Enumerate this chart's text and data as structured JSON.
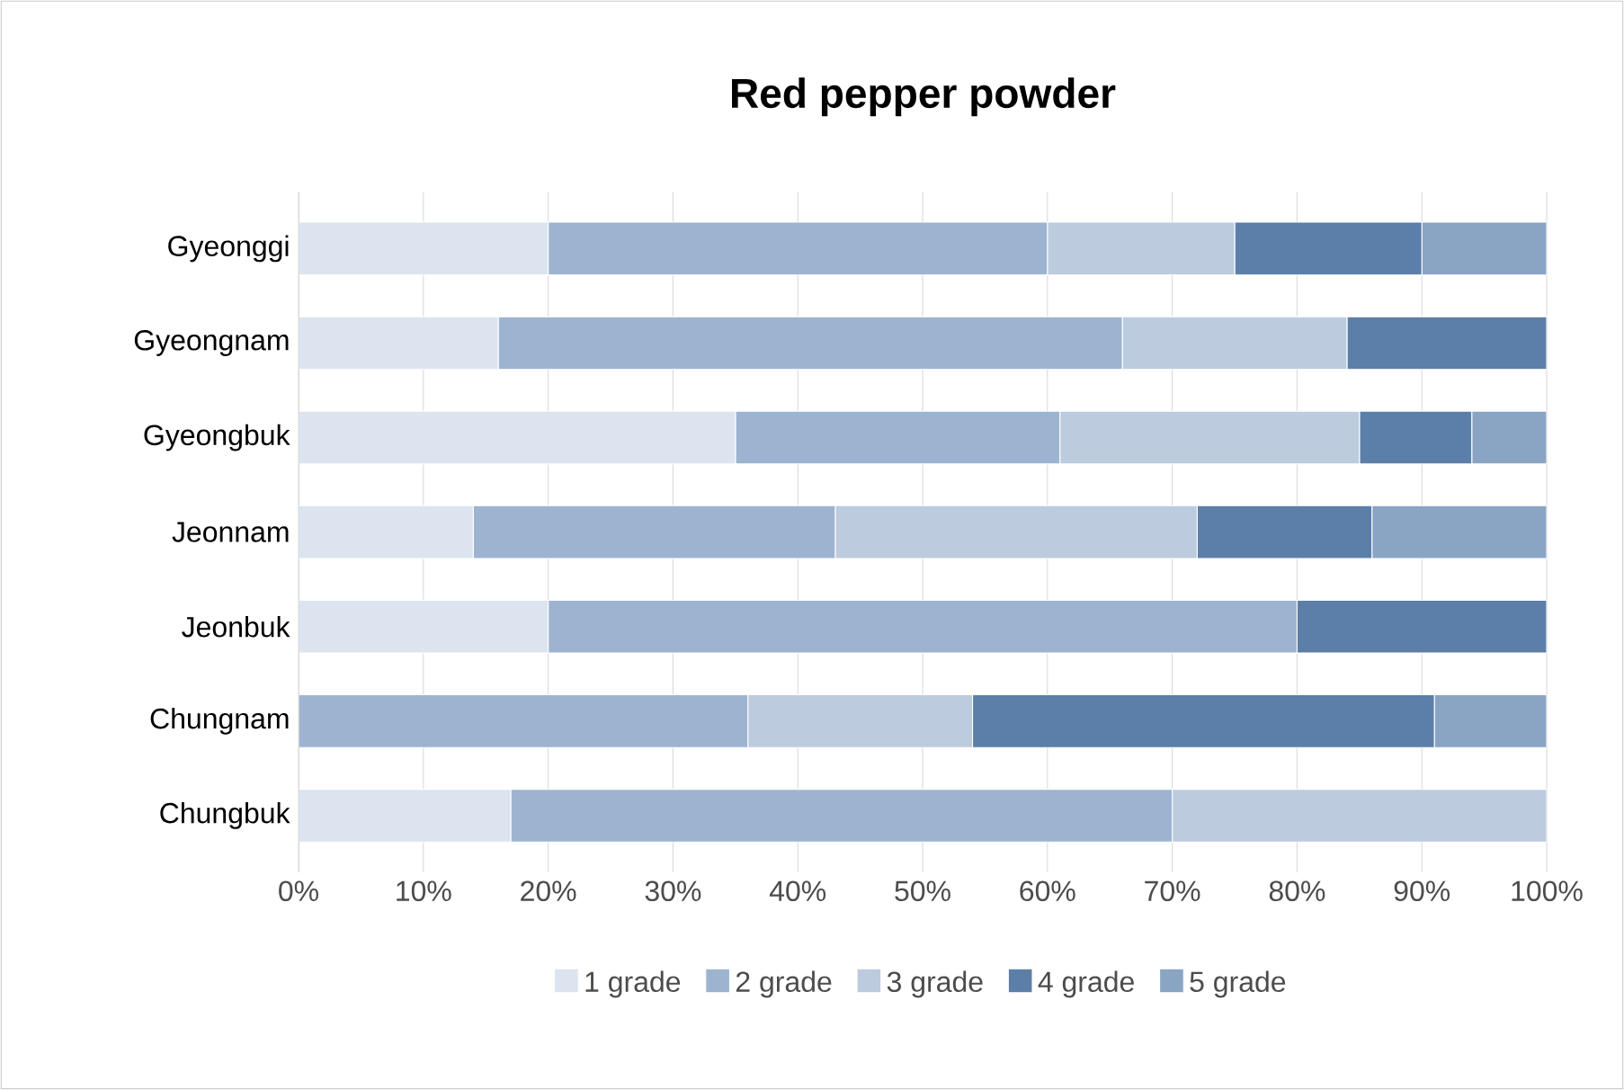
{
  "chart_data": {
    "type": "bar",
    "orientation": "horizontal",
    "stacked": true,
    "title": "Red pepper powder",
    "categories": [
      "Gyeonggi",
      "Gyeongnam",
      "Gyeongbuk",
      "Jeonnam",
      "Jeonbuk",
      "Chungnam",
      "Chungbuk"
    ],
    "series": [
      {
        "name": "1 grade",
        "color": "#dbe4ef",
        "values": [
          20,
          16,
          35,
          14,
          20,
          0,
          17
        ]
      },
      {
        "name": "2 grade",
        "color": "#9db4d0",
        "values": [
          40,
          50,
          26,
          29,
          60,
          36,
          53
        ]
      },
      {
        "name": "3 grade",
        "color": "#bccbde",
        "values": [
          15,
          18,
          24,
          29,
          0,
          18,
          30
        ]
      },
      {
        "name": "4 grade",
        "color": "#5b7fa8",
        "values": [
          15,
          16,
          9,
          14,
          20,
          37,
          0
        ]
      },
      {
        "name": "5 grade",
        "color": "#8aa4c4",
        "values": [
          10,
          0,
          6,
          14,
          0,
          9,
          0
        ]
      }
    ],
    "xlim": [
      0,
      100
    ],
    "xticks": [
      {
        "value": 0,
        "label": "0%"
      },
      {
        "value": 10,
        "label": "10%"
      },
      {
        "value": 20,
        "label": "20%"
      },
      {
        "value": 30,
        "label": "30%"
      },
      {
        "value": 40,
        "label": "40%"
      },
      {
        "value": 50,
        "label": "50%"
      },
      {
        "value": 60,
        "label": "60%"
      },
      {
        "value": 70,
        "label": "70%"
      },
      {
        "value": 80,
        "label": "80%"
      },
      {
        "value": 90,
        "label": "90%"
      },
      {
        "value": 100,
        "label": "100%"
      }
    ],
    "grid": "x",
    "legend": "bottom"
  }
}
